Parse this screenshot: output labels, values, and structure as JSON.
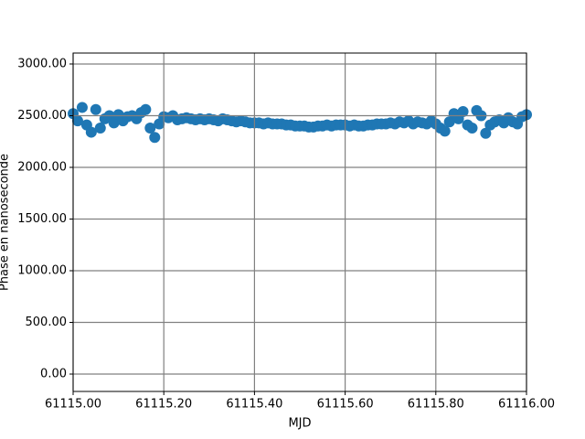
{
  "chart_data": {
    "type": "scatter",
    "x_label": "MJD",
    "y_label": "Phase en nanoseconde",
    "x": [
      61115.0,
      61115.01,
      61115.02,
      61115.03,
      61115.04,
      61115.05,
      61115.06,
      61115.07,
      61115.08,
      61115.09,
      61115.1,
      61115.11,
      61115.12,
      61115.13,
      61115.14,
      61115.15,
      61115.16,
      61115.17,
      61115.18,
      61115.19,
      61115.2,
      61115.21,
      61115.22,
      61115.23,
      61115.24,
      61115.25,
      61115.26,
      61115.27,
      61115.28,
      61115.29,
      61115.3,
      61115.31,
      61115.32,
      61115.33,
      61115.34,
      61115.35,
      61115.36,
      61115.37,
      61115.38,
      61115.39,
      61115.4,
      61115.41,
      61115.42,
      61115.43,
      61115.44,
      61115.45,
      61115.46,
      61115.47,
      61115.48,
      61115.49,
      61115.5,
      61115.51,
      61115.52,
      61115.53,
      61115.54,
      61115.55,
      61115.56,
      61115.57,
      61115.58,
      61115.59,
      61115.6,
      61115.61,
      61115.62,
      61115.63,
      61115.64,
      61115.65,
      61115.66,
      61115.67,
      61115.68,
      61115.69,
      61115.7,
      61115.71,
      61115.72,
      61115.73,
      61115.74,
      61115.75,
      61115.76,
      61115.77,
      61115.78,
      61115.79,
      61115.8,
      61115.81,
      61115.82,
      61115.83,
      61115.84,
      61115.85,
      61115.86,
      61115.87,
      61115.88,
      61115.89,
      61115.9,
      61115.91,
      61115.92,
      61115.93,
      61115.94,
      61115.95,
      61115.96,
      61115.97,
      61115.98,
      61115.99,
      61116.0
    ],
    "values": [
      2520,
      2450,
      2580,
      2410,
      2340,
      2560,
      2380,
      2470,
      2500,
      2430,
      2510,
      2450,
      2490,
      2500,
      2470,
      2530,
      2560,
      2380,
      2290,
      2420,
      2490,
      2480,
      2500,
      2460,
      2470,
      2480,
      2470,
      2460,
      2470,
      2460,
      2470,
      2460,
      2450,
      2470,
      2460,
      2450,
      2440,
      2450,
      2440,
      2430,
      2430,
      2430,
      2420,
      2430,
      2420,
      2420,
      2420,
      2410,
      2410,
      2400,
      2400,
      2400,
      2390,
      2390,
      2400,
      2400,
      2410,
      2400,
      2410,
      2410,
      2410,
      2400,
      2410,
      2400,
      2400,
      2410,
      2410,
      2420,
      2420,
      2420,
      2430,
      2420,
      2440,
      2430,
      2450,
      2420,
      2440,
      2430,
      2420,
      2450,
      2420,
      2380,
      2350,
      2440,
      2520,
      2470,
      2540,
      2410,
      2380,
      2550,
      2500,
      2330,
      2410,
      2440,
      2460,
      2430,
      2480,
      2440,
      2420,
      2490,
      2510
    ],
    "color": "#1f77b4",
    "xlim": [
      61115.0,
      61116.0
    ],
    "xticks": [
      {
        "value": 61115.0,
        "label": "61115.00"
      },
      {
        "value": 61115.2,
        "label": "61115.20"
      },
      {
        "value": 61115.4,
        "label": "61115.40"
      },
      {
        "value": 61115.6,
        "label": "61115.60"
      },
      {
        "value": 61115.8,
        "label": "61115.80"
      },
      {
        "value": 61116.0,
        "label": "61116.00"
      }
    ],
    "ylim": [
      -168,
      3106
    ],
    "yticks": [
      {
        "value": 0,
        "label": "0.00"
      },
      {
        "value": 500,
        "label": "500.00"
      },
      {
        "value": 1000,
        "label": "1000.00"
      },
      {
        "value": 1500,
        "label": "1500.00"
      },
      {
        "value": 2000,
        "label": "2000.00"
      },
      {
        "value": 2500,
        "label": "2500.00"
      },
      {
        "value": 3000,
        "label": "3000.00"
      }
    ],
    "grid": true,
    "grid_color": "#808080"
  }
}
